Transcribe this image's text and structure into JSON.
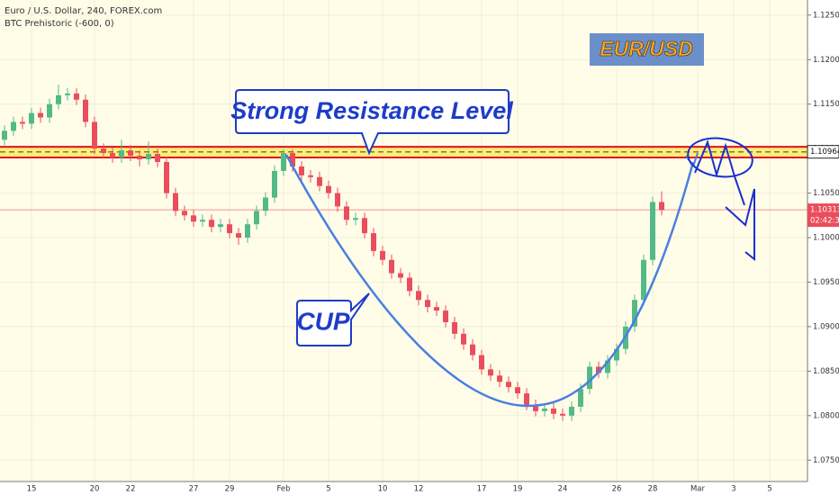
{
  "chart_data": {
    "type": "candlestick",
    "title": "Euro / U.S. Dollar, 240, FOREX.com",
    "subtitle": "BTC Prehistoric (-600, 0)",
    "annotations": {
      "resistance": "Strong Resistance Level",
      "cup": "CUP",
      "pair": "EUR/USD"
    },
    "up_color": "#53b987",
    "down_color": "#eb4d5c",
    "ylim": [
      1.0726,
      1.1267
    ],
    "yticks": [
      {
        "value": 1.075,
        "label": "1.07500"
      },
      {
        "value": 1.08,
        "label": "1.08000"
      },
      {
        "value": 1.085,
        "label": "1.08500"
      },
      {
        "value": 1.09,
        "label": "1.09000"
      },
      {
        "value": 1.095,
        "label": "1.09500"
      },
      {
        "value": 1.1,
        "label": "1.10000"
      },
      {
        "value": 1.105,
        "label": "1.10500"
      },
      {
        "value": 1.11,
        "label": "1.11000"
      },
      {
        "value": 1.115,
        "label": "1.11500"
      },
      {
        "value": 1.12,
        "label": "1.12000"
      },
      {
        "value": 1.125,
        "label": "1.12500"
      }
    ],
    "grid": true,
    "resistance_level": 1.10964,
    "resistance_band": [
      1.1102,
      1.109
    ],
    "last_price": 1.10313,
    "countdown": "02:42:39",
    "categories": [
      null,
      null,
      null,
      "15",
      null,
      null,
      null,
      null,
      null,
      null,
      "20",
      null,
      null,
      null,
      "22",
      null,
      null,
      null,
      null,
      null,
      null,
      "27",
      null,
      null,
      null,
      "29",
      null,
      null,
      null,
      null,
      null,
      "Feb",
      null,
      null,
      null,
      null,
      "5",
      null,
      null,
      null,
      null,
      null,
      "10",
      null,
      null,
      null,
      "12",
      null,
      null,
      null,
      null,
      null,
      null,
      "17",
      null,
      null,
      null,
      "19",
      null,
      null,
      null,
      null,
      "24",
      null,
      null,
      null,
      null,
      null,
      "26",
      null,
      null,
      null,
      "28",
      null,
      null,
      null,
      null,
      "Mar",
      null,
      null,
      null,
      "3",
      null,
      null,
      null,
      "5",
      null,
      null,
      null
    ],
    "ohlc": [
      [
        1.111,
        1.1126,
        1.1104,
        1.112
      ],
      [
        1.112,
        1.1136,
        1.1114,
        1.113
      ],
      [
        1.113,
        1.1136,
        1.1122,
        1.1128
      ],
      [
        1.1128,
        1.1146,
        1.1122,
        1.114
      ],
      [
        1.114,
        1.1146,
        1.1129,
        1.1135
      ],
      [
        1.1135,
        1.1156,
        1.1129,
        1.115
      ],
      [
        1.115,
        1.1172,
        1.1144,
        1.116
      ],
      [
        1.116,
        1.1168,
        1.1154,
        1.1162
      ],
      [
        1.1162,
        1.1168,
        1.1149,
        1.1155
      ],
      [
        1.1155,
        1.1161,
        1.1124,
        1.113
      ],
      [
        1.113,
        1.1136,
        1.1094,
        1.11
      ],
      [
        1.11,
        1.1106,
        1.1089,
        1.1095
      ],
      [
        1.1095,
        1.1101,
        1.1084,
        1.109
      ],
      [
        1.109,
        1.111,
        1.1084,
        1.1098
      ],
      [
        1.1098,
        1.1104,
        1.1086,
        1.1092
      ],
      [
        1.1092,
        1.1098,
        1.108,
        1.1088
      ],
      [
        1.1088,
        1.1108,
        1.1082,
        1.1094
      ],
      [
        1.1094,
        1.11,
        1.1079,
        1.1085
      ],
      [
        1.1085,
        1.1091,
        1.1044,
        1.105
      ],
      [
        1.105,
        1.1056,
        1.1024,
        1.103
      ],
      [
        1.103,
        1.1036,
        1.1019,
        1.1025
      ],
      [
        1.1025,
        1.1031,
        1.1012,
        1.1018
      ],
      [
        1.1018,
        1.1026,
        1.1012,
        1.102
      ],
      [
        1.102,
        1.1026,
        1.1006,
        1.1012
      ],
      [
        1.1012,
        1.1021,
        1.1006,
        1.1015
      ],
      [
        1.1015,
        1.1021,
        1.0999,
        1.1005
      ],
      [
        1.1005,
        1.1011,
        1.0992,
        1.1
      ],
      [
        1.1,
        1.1021,
        1.0994,
        1.1015
      ],
      [
        1.1015,
        1.1036,
        1.1009,
        1.103
      ],
      [
        1.103,
        1.1051,
        1.1024,
        1.1045
      ],
      [
        1.1045,
        1.1081,
        1.1039,
        1.1075
      ],
      [
        1.1075,
        1.1099,
        1.1069,
        1.1095
      ],
      [
        1.1095,
        1.1099,
        1.1074,
        1.108
      ],
      [
        1.108,
        1.1086,
        1.1064,
        1.107
      ],
      [
        1.107,
        1.1076,
        1.1062,
        1.1068
      ],
      [
        1.1068,
        1.1074,
        1.1052,
        1.1058
      ],
      [
        1.1058,
        1.1064,
        1.1044,
        1.105
      ],
      [
        1.105,
        1.1056,
        1.1029,
        1.1035
      ],
      [
        1.1035,
        1.1041,
        1.1014,
        1.102
      ],
      [
        1.102,
        1.1028,
        1.1014,
        1.1022
      ],
      [
        1.1022,
        1.1028,
        1.0999,
        1.1005
      ],
      [
        1.1005,
        1.1011,
        1.0979,
        1.0985
      ],
      [
        1.0985,
        1.0991,
        1.0969,
        1.0975
      ],
      [
        1.0975,
        1.0981,
        1.0954,
        1.096
      ],
      [
        1.096,
        1.0966,
        1.0949,
        1.0955
      ],
      [
        1.0955,
        1.0961,
        1.0934,
        1.094
      ],
      [
        1.094,
        1.0946,
        1.0924,
        1.093
      ],
      [
        1.093,
        1.0936,
        1.0916,
        1.0922
      ],
      [
        1.0922,
        1.0928,
        1.0912,
        1.0918
      ],
      [
        1.0918,
        1.0924,
        1.0899,
        1.0905
      ],
      [
        1.0905,
        1.0911,
        1.0886,
        1.0892
      ],
      [
        1.0892,
        1.0898,
        1.0874,
        1.088
      ],
      [
        1.088,
        1.0886,
        1.0862,
        1.0868
      ],
      [
        1.0868,
        1.0874,
        1.0846,
        1.0852
      ],
      [
        1.0852,
        1.0858,
        1.0839,
        1.0845
      ],
      [
        1.0845,
        1.0851,
        1.0832,
        1.0838
      ],
      [
        1.0838,
        1.0844,
        1.0826,
        1.0832
      ],
      [
        1.0832,
        1.0838,
        1.0819,
        1.0825
      ],
      [
        1.0825,
        1.0831,
        1.0806,
        1.0812
      ],
      [
        1.0812,
        1.0818,
        1.0799,
        1.0805
      ],
      [
        1.0805,
        1.0814,
        1.0799,
        1.0808
      ],
      [
        1.0808,
        1.0814,
        1.0796,
        1.0802
      ],
      [
        1.0802,
        1.0808,
        1.0794,
        1.08
      ],
      [
        1.08,
        1.0816,
        1.0794,
        1.081
      ],
      [
        1.081,
        1.0836,
        1.0804,
        1.083
      ],
      [
        1.083,
        1.0861,
        1.0824,
        1.0855
      ],
      [
        1.0855,
        1.0861,
        1.0842,
        1.0848
      ],
      [
        1.0848,
        1.0868,
        1.0842,
        1.0862
      ],
      [
        1.0862,
        1.0881,
        1.0856,
        1.0875
      ],
      [
        1.0875,
        1.0906,
        1.0869,
        1.09
      ],
      [
        1.09,
        1.0936,
        1.0894,
        1.093
      ],
      [
        1.093,
        1.0981,
        1.0924,
        1.0975
      ],
      [
        1.0975,
        1.1046,
        1.0969,
        1.104
      ],
      [
        1.104,
        1.1052,
        1.1025,
        1.1031
      ],
      null,
      null,
      null,
      null,
      null,
      null,
      null,
      null,
      null,
      null,
      null,
      null,
      null,
      null,
      null
    ]
  }
}
